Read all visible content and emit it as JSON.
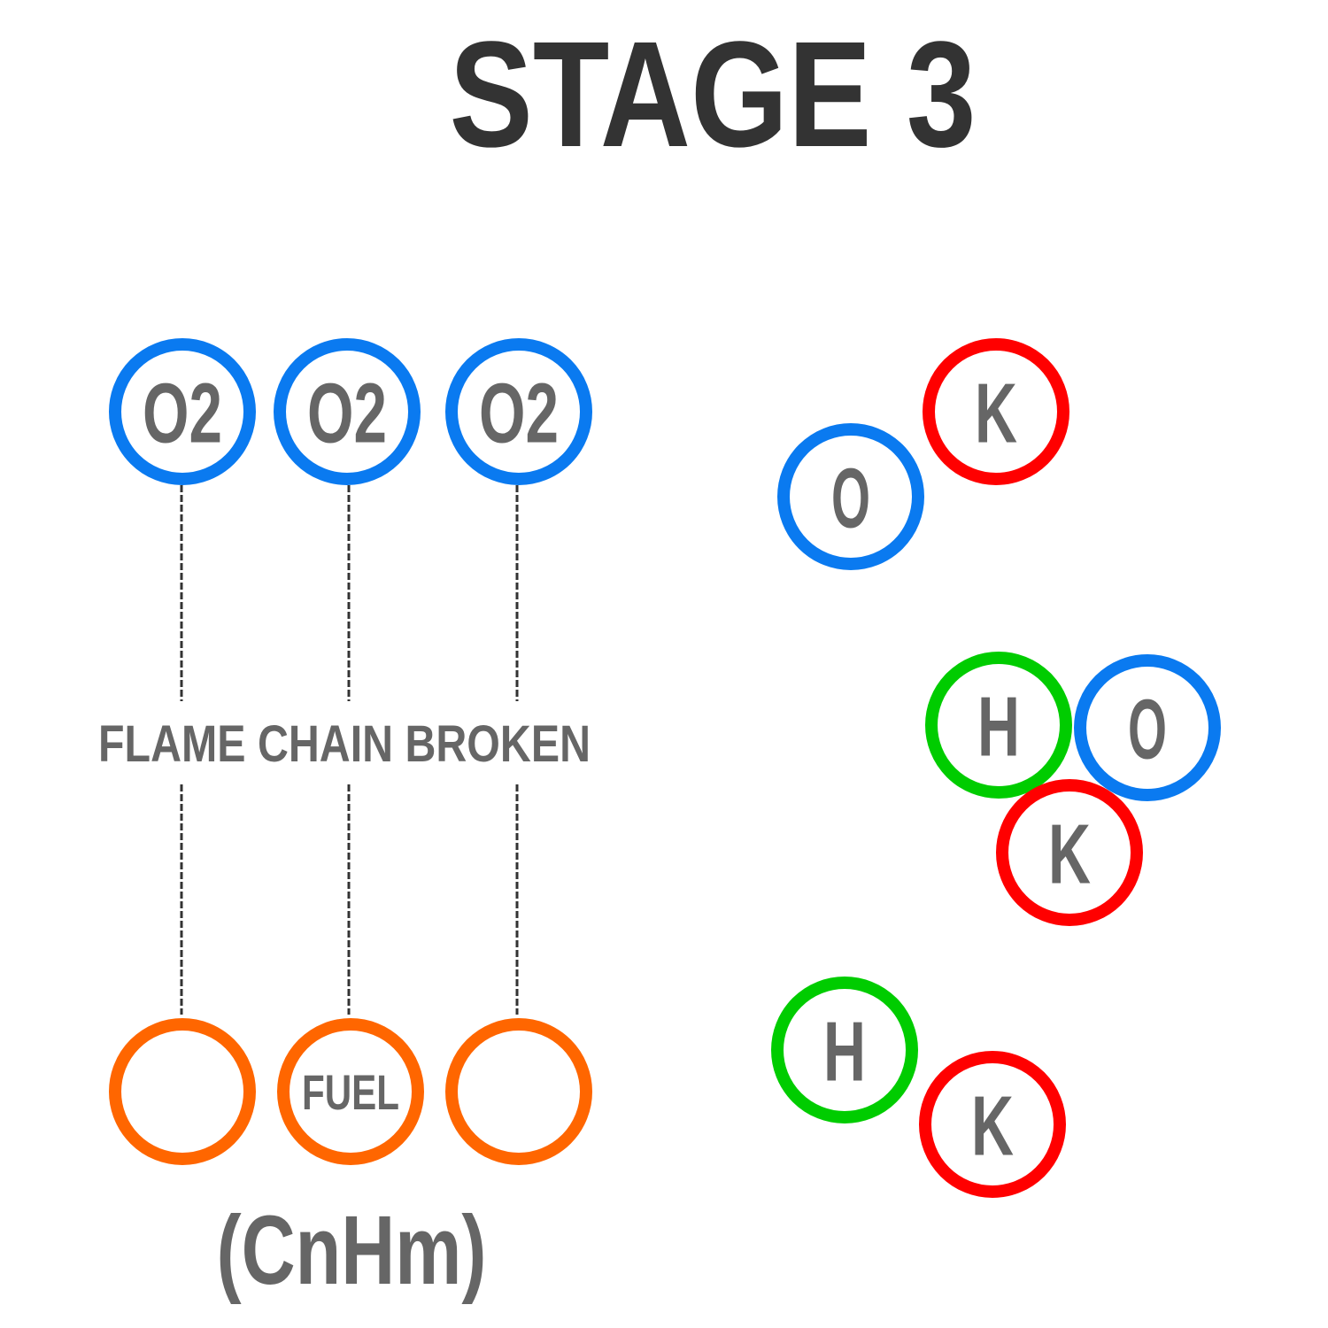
{
  "title": "STAGE 3",
  "colors": {
    "oxygen": "#0a7af0",
    "radical_k": "#ff0000",
    "hydrogen": "#00cc00",
    "fuel": "#ff6600",
    "text": "#666666",
    "title": "#333333",
    "line": "#333333"
  },
  "oxygen_row": [
    {
      "label": "O2"
    },
    {
      "label": "O2"
    },
    {
      "label": "O2"
    }
  ],
  "chain_label": "FLAME CHAIN BROKEN",
  "fuel_row": [
    {
      "label": ""
    },
    {
      "label": "FUEL"
    },
    {
      "label": ""
    }
  ],
  "fuel_formula": "(CnHm)",
  "free_atoms": [
    {
      "label": "K",
      "type": "radical_k"
    },
    {
      "label": "O",
      "type": "oxygen"
    },
    {
      "label": "H",
      "type": "hydrogen"
    },
    {
      "label": "O",
      "type": "oxygen"
    },
    {
      "label": "K",
      "type": "radical_k"
    },
    {
      "label": "H",
      "type": "hydrogen"
    },
    {
      "label": "K",
      "type": "radical_k"
    }
  ]
}
